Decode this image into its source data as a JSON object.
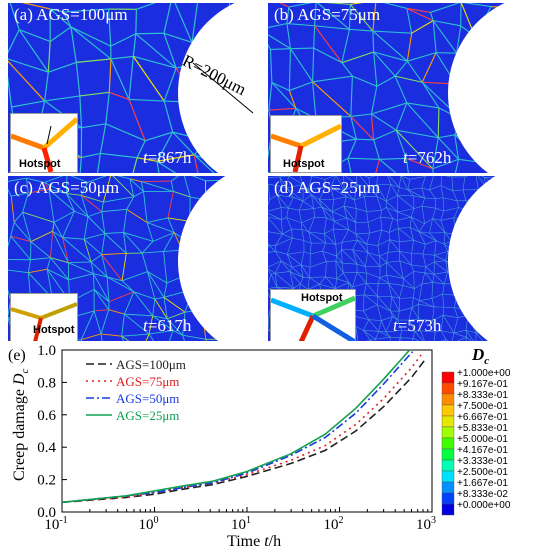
{
  "panels": [
    {
      "label": "(a) AGS=100μm",
      "time_var": "t",
      "time_val": "=867h",
      "radius_label": "R=200μm",
      "hotspot": "Hotspot"
    },
    {
      "label": "(b) AGS=75μm",
      "time_var": "t",
      "time_val": "=762h",
      "hotspot": "Hotspot"
    },
    {
      "label": "(c) AGS=50μm",
      "time_var": "t",
      "time_val": "=617h",
      "hotspot": "Hotspot"
    },
    {
      "label": "(d) AGS=25μm",
      "time_var": "t",
      "time_val": "=573h",
      "hotspot": "Hotspot"
    }
  ],
  "colorbar": {
    "title": "D",
    "title_sub": "c",
    "levels": [
      "+1.000e+00",
      "+9.167e-01",
      "+8.333e-01",
      "+7.500e-01",
      "+6.667e-01",
      "+5.833e-01",
      "+5.000e-01",
      "+4.167e-01",
      "+3.333e-01",
      "+2.500e-01",
      "+1.667e-01",
      "+8.333e-02",
      "+0.000e+00"
    ],
    "colors": [
      "#ff0000",
      "#ff4a00",
      "#ff8c00",
      "#ffc800",
      "#e6e600",
      "#a0ff00",
      "#40ff00",
      "#00ff40",
      "#00ffb0",
      "#00e0ff",
      "#0090ff",
      "#0040ff",
      "#0000e0"
    ]
  },
  "chart_data": {
    "type": "line",
    "panel_label": "(e)",
    "xlabel": "Time",
    "xlabel_var": "t",
    "xlabel_unit": "/h",
    "ylabel": "Creep damage",
    "ylabel_var": "D",
    "ylabel_sub": "c",
    "xscale": "log",
    "xlim": [
      0.1,
      1000
    ],
    "ylim": [
      0,
      1.0
    ],
    "xticks": [
      "10",
      "10",
      "10",
      "10",
      "10"
    ],
    "xtick_exp": [
      "-1",
      "0",
      "1",
      "2",
      "3"
    ],
    "yticks": [
      "0.0",
      "0.2",
      "0.4",
      "0.6",
      "0.8",
      "1.0"
    ],
    "legend_position": "top-left",
    "series": [
      {
        "name": "AGS=100μm",
        "color": "#222222",
        "dash": "8,4",
        "x": [
          0.1,
          0.5,
          1,
          2,
          4.3,
          10,
          30,
          70,
          150,
          300,
          600,
          867
        ],
        "y": [
          0.06,
          0.09,
          0.11,
          0.14,
          0.17,
          0.22,
          0.3,
          0.38,
          0.5,
          0.65,
          0.83,
          0.95
        ]
      },
      {
        "name": "AGS=75μm",
        "color": "#e02020",
        "dash": "2,4",
        "x": [
          0.1,
          0.5,
          1,
          2,
          4.3,
          10,
          30,
          70,
          150,
          300,
          600,
          762
        ],
        "y": [
          0.06,
          0.09,
          0.12,
          0.15,
          0.18,
          0.23,
          0.32,
          0.41,
          0.54,
          0.7,
          0.89,
          0.97
        ]
      },
      {
        "name": "AGS=50μm",
        "color": "#1a3ae0",
        "dash": "8,3,2,3",
        "x": [
          0.1,
          0.5,
          1,
          2,
          4.3,
          10,
          30,
          70,
          150,
          300,
          617
        ],
        "y": [
          0.06,
          0.1,
          0.12,
          0.15,
          0.18,
          0.24,
          0.35,
          0.46,
          0.61,
          0.79,
          0.99
        ]
      },
      {
        "name": "AGS=25μm",
        "color": "#10a050",
        "dash": "",
        "x": [
          0.1,
          0.5,
          1,
          2,
          4.3,
          10,
          30,
          70,
          150,
          300,
          573
        ],
        "y": [
          0.06,
          0.1,
          0.13,
          0.16,
          0.19,
          0.25,
          0.36,
          0.48,
          0.64,
          0.82,
          1.0
        ]
      }
    ]
  }
}
